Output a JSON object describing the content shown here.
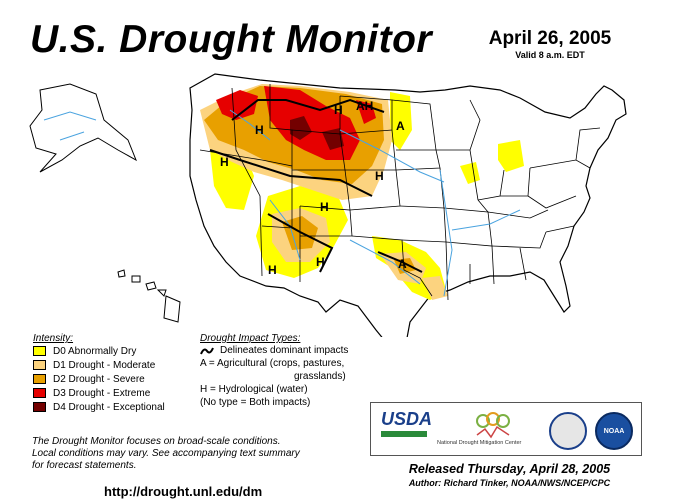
{
  "header": {
    "title": "U.S. Drought Monitor",
    "date": "April 26, 2005",
    "valid": "Valid 8 a.m. EDT"
  },
  "legend": {
    "heading": "Intensity:",
    "items": [
      {
        "label": "D0 Abnormally Dry",
        "color": "#ffff00"
      },
      {
        "label": "D1 Drought - Moderate",
        "color": "#fcd37f"
      },
      {
        "label": "D2 Drought - Severe",
        "color": "#e8a000"
      },
      {
        "label": "D3 Drought - Extreme",
        "color": "#e60000"
      },
      {
        "label": "D4 Drought - Exceptional",
        "color": "#730000"
      }
    ]
  },
  "impacts": {
    "heading": "Drought Impact Types:",
    "delineates": "Delineates dominant impacts",
    "agricultural": "A = Agricultural (crops, pastures,",
    "agricultural_cont": "grasslands)",
    "hydrological": "H = Hydrological (water)",
    "both": "(No type = Both impacts)"
  },
  "map_labels": {
    "h": "H",
    "a": "A",
    "ah": "AH"
  },
  "footer": {
    "note_line1": "The Drought Monitor focuses on broad-scale conditions.",
    "note_line2": "Local conditions may vary.  See accompanying text summary",
    "note_line3": "for forecast statements.",
    "url": "http://drought.unl.edu/dm",
    "released": "Released Thursday, April 28, 2005",
    "author": "Author:  Richard Tinker, NOAA/NWS/NCEP/CPC"
  },
  "logos": {
    "usda": "USDA",
    "ndmc": "National Drought Mitigation Center",
    "noaa": "NOAA"
  }
}
